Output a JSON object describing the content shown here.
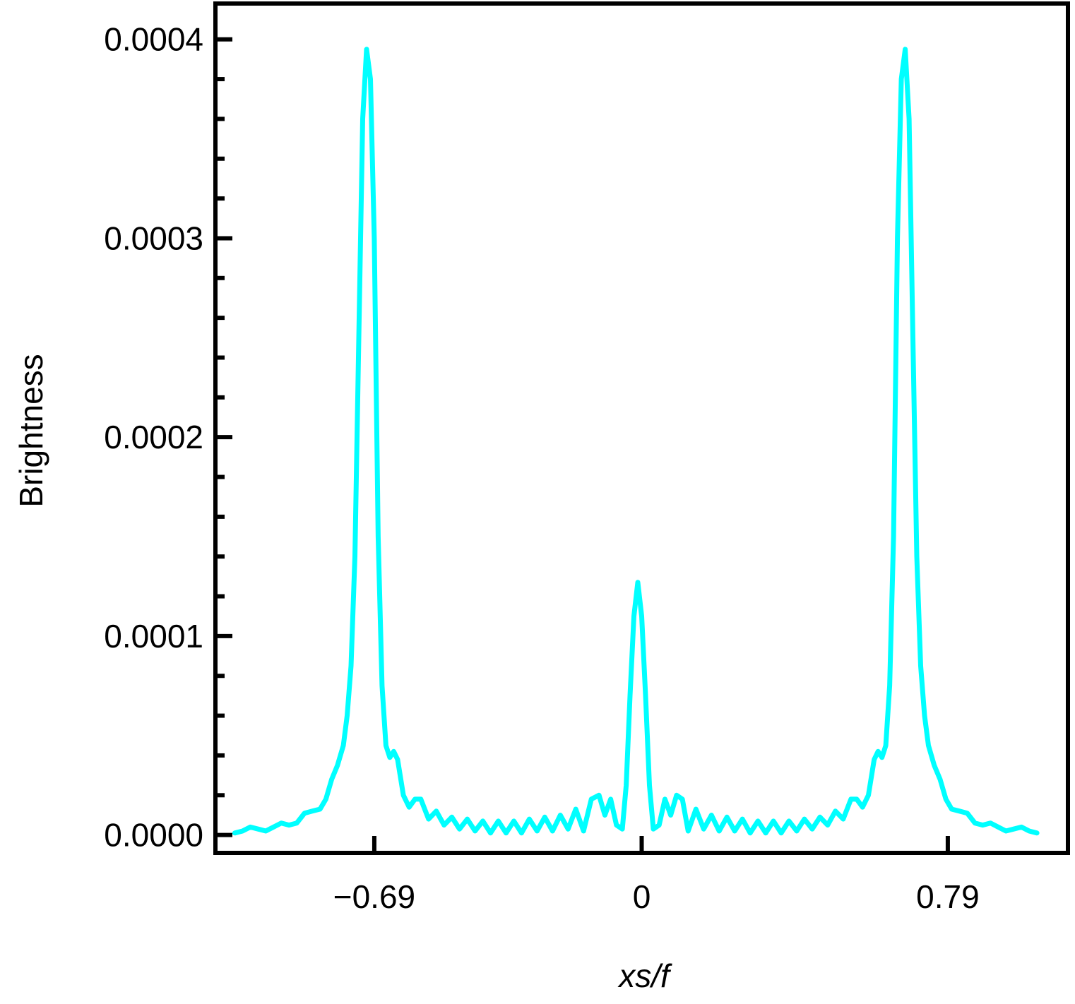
{
  "chart_data": {
    "type": "line",
    "title": "",
    "xlabel": "xs/f",
    "ylabel": "Brightness",
    "xlim": [
      -1.1,
      1.1
    ],
    "ylim": [
      -9e-06,
      0.000418
    ],
    "y_ticks": [
      {
        "value": 0.0,
        "label": "0.0000"
      },
      {
        "value": 0.0001,
        "label": "0.0001"
      },
      {
        "value": 0.0002,
        "label": "0.0002"
      },
      {
        "value": 0.0003,
        "label": "0.0003"
      },
      {
        "value": 0.0004,
        "label": "0.0004"
      }
    ],
    "x_ticks": [
      {
        "value": -0.69,
        "label": "−0.69"
      },
      {
        "value": 0.0,
        "label": "0"
      },
      {
        "value": 0.79,
        "label": "0.79"
      }
    ],
    "grid": false,
    "series": [
      {
        "color": "#00ffff",
        "points": [
          [
            -1.05,
            1e-06
          ],
          [
            -1.03,
            2e-06
          ],
          [
            -1.01,
            4e-06
          ],
          [
            -0.99,
            3e-06
          ],
          [
            -0.97,
            2e-06
          ],
          [
            -0.95,
            4e-06
          ],
          [
            -0.93,
            6e-06
          ],
          [
            -0.91,
            5e-06
          ],
          [
            -0.89,
            6e-06
          ],
          [
            -0.87,
            1.1e-05
          ],
          [
            -0.85,
            1.2e-05
          ],
          [
            -0.83,
            1.3e-05
          ],
          [
            -0.815,
            1.8e-05
          ],
          [
            -0.8,
            2.8e-05
          ],
          [
            -0.785,
            3.5e-05
          ],
          [
            -0.77,
            4.5e-05
          ],
          [
            -0.76,
            6e-05
          ],
          [
            -0.75,
            8.5e-05
          ],
          [
            -0.74,
            0.00014
          ],
          [
            -0.73,
            0.00025
          ],
          [
            -0.72,
            0.00036
          ],
          [
            -0.71,
            0.000395
          ],
          [
            -0.7,
            0.00038
          ],
          [
            -0.69,
            0.0003
          ],
          [
            -0.68,
            0.00015
          ],
          [
            -0.67,
            7.5e-05
          ],
          [
            -0.66,
            4.5e-05
          ],
          [
            -0.65,
            3.9e-05
          ],
          [
            -0.64,
            4.2e-05
          ],
          [
            -0.63,
            3.8e-05
          ],
          [
            -0.615,
            2e-05
          ],
          [
            -0.6,
            1.4e-05
          ],
          [
            -0.585,
            1.8e-05
          ],
          [
            -0.57,
            1.8e-05
          ],
          [
            -0.55,
            8e-06
          ],
          [
            -0.53,
            1.2e-05
          ],
          [
            -0.51,
            5e-06
          ],
          [
            -0.49,
            9e-06
          ],
          [
            -0.47,
            3e-06
          ],
          [
            -0.45,
            8e-06
          ],
          [
            -0.43,
            2e-06
          ],
          [
            -0.41,
            7e-06
          ],
          [
            -0.39,
            1e-06
          ],
          [
            -0.37,
            7e-06
          ],
          [
            -0.35,
            1e-06
          ],
          [
            -0.33,
            7e-06
          ],
          [
            -0.31,
            1e-06
          ],
          [
            -0.29,
            8e-06
          ],
          [
            -0.27,
            2e-06
          ],
          [
            -0.25,
            9e-06
          ],
          [
            -0.23,
            2e-06
          ],
          [
            -0.21,
            1e-05
          ],
          [
            -0.19,
            3e-06
          ],
          [
            -0.17,
            1.3e-05
          ],
          [
            -0.15,
            2e-06
          ],
          [
            -0.13,
            1.8e-05
          ],
          [
            -0.11,
            2e-05
          ],
          [
            -0.095,
            1e-05
          ],
          [
            -0.08,
            1.8e-05
          ],
          [
            -0.065,
            5e-06
          ],
          [
            -0.05,
            3e-06
          ],
          [
            -0.04,
            2.5e-05
          ],
          [
            -0.03,
            7e-05
          ],
          [
            -0.02,
            0.00011
          ],
          [
            -0.01,
            0.000127
          ],
          [
            0.0,
            0.00011
          ],
          [
            0.01,
            7e-05
          ],
          [
            0.02,
            2.5e-05
          ],
          [
            0.03,
            3e-06
          ],
          [
            0.045,
            5e-06
          ],
          [
            0.06,
            1.8e-05
          ],
          [
            0.075,
            1e-05
          ],
          [
            0.09,
            2e-05
          ],
          [
            0.105,
            1.8e-05
          ],
          [
            0.12,
            2e-06
          ],
          [
            0.14,
            1.3e-05
          ],
          [
            0.16,
            3e-06
          ],
          [
            0.18,
            1e-05
          ],
          [
            0.2,
            2e-06
          ],
          [
            0.22,
            9e-06
          ],
          [
            0.24,
            2e-06
          ],
          [
            0.26,
            8e-06
          ],
          [
            0.28,
            1e-06
          ],
          [
            0.3,
            7e-06
          ],
          [
            0.32,
            1e-06
          ],
          [
            0.34,
            7e-06
          ],
          [
            0.36,
            1e-06
          ],
          [
            0.38,
            7e-06
          ],
          [
            0.4,
            2e-06
          ],
          [
            0.42,
            8e-06
          ],
          [
            0.44,
            3e-06
          ],
          [
            0.46,
            9e-06
          ],
          [
            0.48,
            5e-06
          ],
          [
            0.5,
            1.2e-05
          ],
          [
            0.52,
            8e-06
          ],
          [
            0.54,
            1.8e-05
          ],
          [
            0.555,
            1.8e-05
          ],
          [
            0.57,
            1.4e-05
          ],
          [
            0.585,
            2e-05
          ],
          [
            0.6,
            3.8e-05
          ],
          [
            0.61,
            4.2e-05
          ],
          [
            0.62,
            3.9e-05
          ],
          [
            0.63,
            4.5e-05
          ],
          [
            0.64,
            7.5e-05
          ],
          [
            0.65,
            0.00015
          ],
          [
            0.66,
            0.0003
          ],
          [
            0.67,
            0.00038
          ],
          [
            0.68,
            0.000395
          ],
          [
            0.69,
            0.00036
          ],
          [
            0.7,
            0.00025
          ],
          [
            0.71,
            0.00014
          ],
          [
            0.72,
            8.5e-05
          ],
          [
            0.73,
            6e-05
          ],
          [
            0.74,
            4.5e-05
          ],
          [
            0.755,
            3.5e-05
          ],
          [
            0.77,
            2.8e-05
          ],
          [
            0.785,
            1.8e-05
          ],
          [
            0.8,
            1.3e-05
          ],
          [
            0.82,
            1.2e-05
          ],
          [
            0.84,
            1.1e-05
          ],
          [
            0.86,
            6e-06
          ],
          [
            0.88,
            5e-06
          ],
          [
            0.9,
            6e-06
          ],
          [
            0.92,
            4e-06
          ],
          [
            0.94,
            2e-06
          ],
          [
            0.96,
            3e-06
          ],
          [
            0.98,
            4e-06
          ],
          [
            1.0,
            2e-06
          ],
          [
            1.02,
            1e-06
          ]
        ]
      }
    ]
  }
}
